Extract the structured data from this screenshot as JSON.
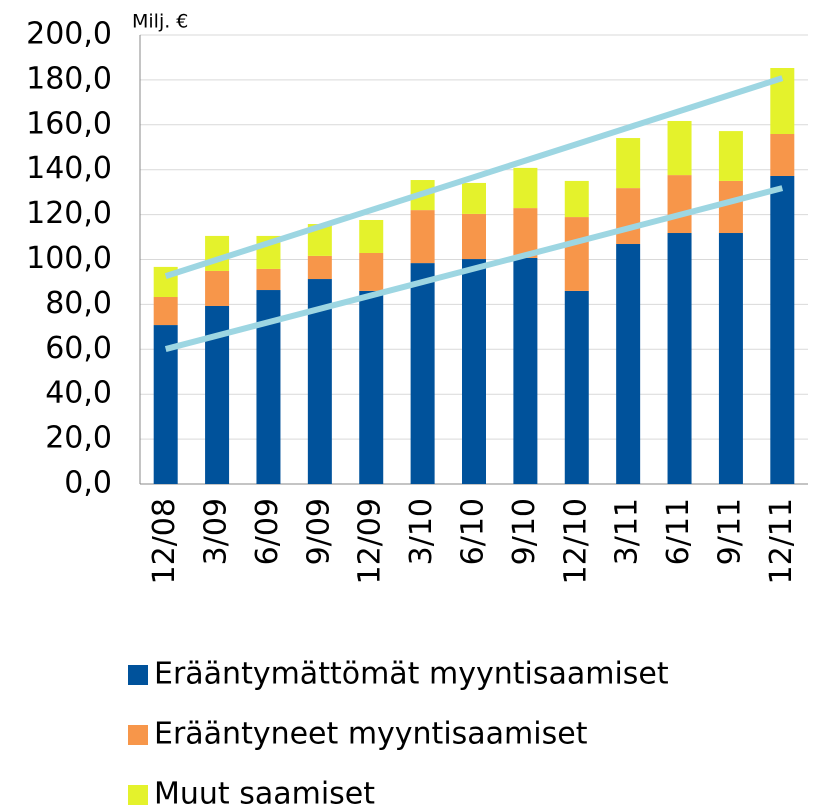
{
  "chart_data": {
    "type": "stacked_bar",
    "unit_label": "Milj. €",
    "categories": [
      "12/08",
      "3/09",
      "6/09",
      "9/09",
      "12/09",
      "3/10",
      "6/10",
      "9/10",
      "12/10",
      "3/11",
      "6/11",
      "9/11",
      "12/11"
    ],
    "series": [
      {
        "name": "Erääntymättömät myyntisaamiset",
        "color": "#00529b",
        "values": [
          70.8,
          79.3,
          86.4,
          91.3,
          86.0,
          98.4,
          100.2,
          100.7,
          86.0,
          106.9,
          111.8,
          111.8,
          137.2
        ]
      },
      {
        "name": "Erääntyneet myyntisaamiset",
        "color": "#f7964a",
        "values": [
          12.5,
          15.6,
          9.4,
          10.3,
          16.9,
          23.6,
          20.1,
          22.2,
          32.9,
          24.9,
          25.8,
          23.2,
          18.7
        ]
      },
      {
        "name": "Muut saamiset",
        "color": "#e4f22c",
        "values": [
          13.4,
          15.6,
          14.7,
          14.2,
          14.7,
          13.4,
          13.8,
          17.9,
          16.1,
          22.3,
          24.1,
          22.2,
          29.4
        ]
      }
    ],
    "trendlines": [
      {
        "color": "#9dd6e2",
        "values": [
          92.6,
          180.8
        ]
      },
      {
        "color": "#9dd6e2",
        "values": [
          60.1,
          131.8
        ]
      }
    ],
    "ylim": [
      0,
      200
    ],
    "yticks": [
      {
        "value": 0,
        "label": "0,0"
      },
      {
        "value": 20,
        "label": "20,0"
      },
      {
        "value": 40,
        "label": "40,0"
      },
      {
        "value": 60,
        "label": "60,0"
      },
      {
        "value": 80,
        "label": "80,0"
      },
      {
        "value": 100,
        "label": "100,0"
      },
      {
        "value": 120,
        "label": "120,0"
      },
      {
        "value": 140,
        "label": "140,0"
      },
      {
        "value": 160,
        "label": "160,0"
      },
      {
        "value": 180,
        "label": "180,0"
      },
      {
        "value": 200,
        "label": "200,0"
      }
    ],
    "grid": true
  }
}
